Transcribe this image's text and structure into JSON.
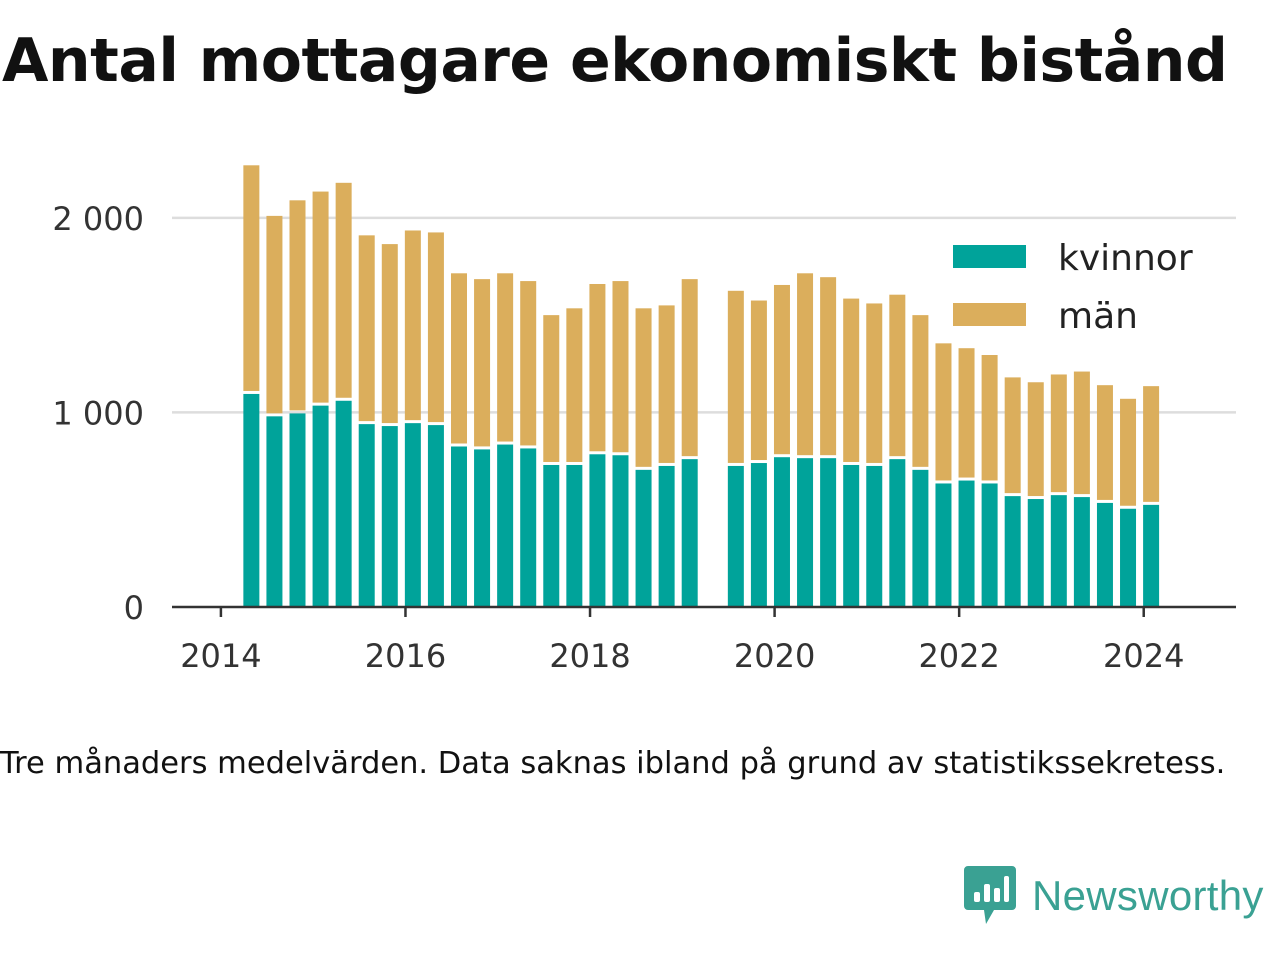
{
  "title": "Antal mottagare ekonomiskt bistånd",
  "note": "Tre månaders medelvärden. Data saknas ibland på grund av statistikssekretess.",
  "brand": {
    "name": "Newsworthy",
    "logo_icon": "newsworthy-logo-icon"
  },
  "colors": {
    "kvinnor": "#00a39a",
    "man": "#dbae5c",
    "grid": "#dddddd",
    "axis": "#333333",
    "brand": "#3aa193"
  },
  "chart_data": {
    "type": "bar",
    "stacked": true,
    "x_unit": "date",
    "ylim": [
      0,
      2400
    ],
    "yticks": [
      {
        "value": 0,
        "label": "0"
      },
      {
        "value": 1000,
        "label": "1 000"
      },
      {
        "value": 2000,
        "label": "2 000"
      }
    ],
    "xticks": [
      {
        "value": 2014.0,
        "label": "2014"
      },
      {
        "value": 2016.0,
        "label": "2016"
      },
      {
        "value": 2018.0,
        "label": "2018"
      },
      {
        "value": 2020.0,
        "label": "2020"
      },
      {
        "value": 2022.0,
        "label": "2022"
      },
      {
        "value": 2024.0,
        "label": "2024"
      }
    ],
    "grid": true,
    "legend_position": "top-right",
    "x": [
      2014.33,
      2014.58,
      2014.83,
      2015.08,
      2015.33,
      2015.58,
      2015.83,
      2016.08,
      2016.33,
      2016.58,
      2016.83,
      2017.08,
      2017.33,
      2017.58,
      2017.83,
      2018.08,
      2018.33,
      2018.58,
      2018.83,
      2019.08,
      2019.58,
      2019.83,
      2020.08,
      2020.33,
      2020.58,
      2020.83,
      2021.08,
      2021.33,
      2021.58,
      2021.83,
      2022.08,
      2022.33,
      2022.58,
      2022.83,
      2023.08,
      2023.33,
      2023.58,
      2023.83,
      2024.08
    ],
    "series": [
      {
        "name": "kvinnor",
        "color": "#00a39a",
        "values": [
          1100,
          985,
          1000,
          1040,
          1065,
          945,
          935,
          950,
          940,
          830,
          815,
          840,
          820,
          735,
          735,
          790,
          785,
          710,
          730,
          765,
          730,
          745,
          775,
          770,
          770,
          735,
          730,
          765,
          710,
          640,
          655,
          640,
          575,
          560,
          580,
          570,
          540,
          510,
          530
        ]
      },
      {
        "name": "män",
        "color": "#dbae5c",
        "values": [
          1170,
          1025,
          1090,
          1095,
          1115,
          965,
          930,
          985,
          985,
          885,
          870,
          875,
          855,
          765,
          800,
          870,
          890,
          825,
          820,
          920,
          895,
          830,
          880,
          945,
          925,
          850,
          830,
          840,
          790,
          715,
          675,
          655,
          605,
          595,
          615,
          640,
          600,
          560,
          605
        ]
      }
    ]
  }
}
